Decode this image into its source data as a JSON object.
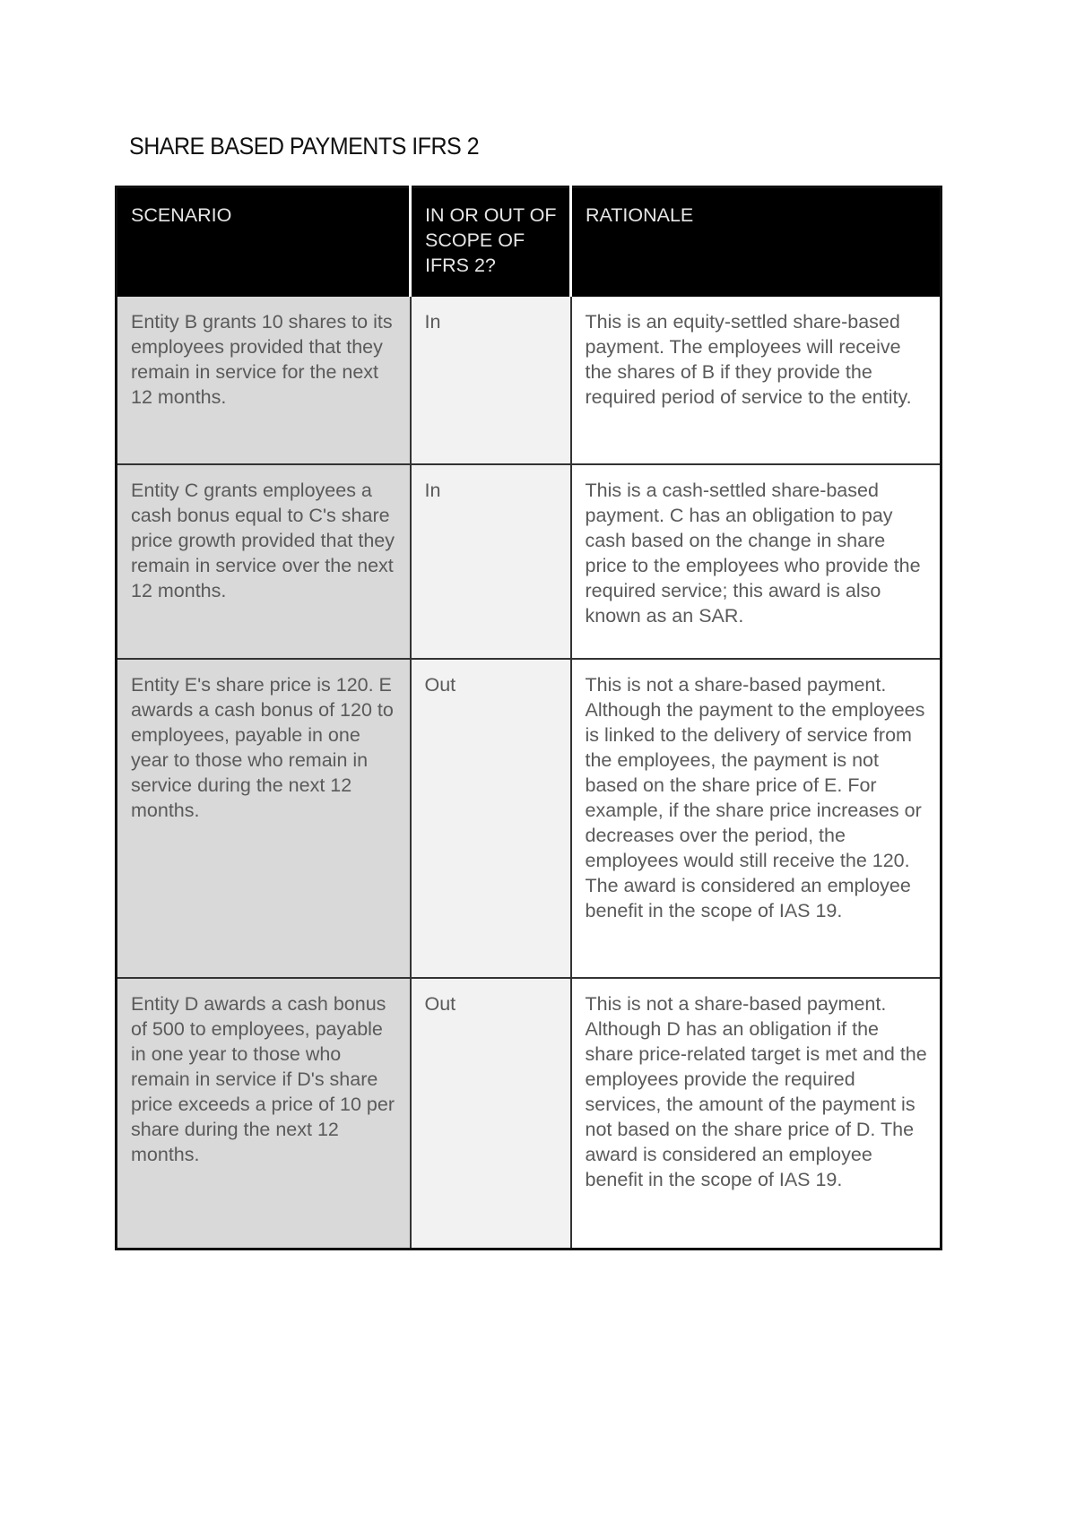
{
  "title": "SHARE BASED PAYMENTS IFRS 2",
  "table": {
    "headers": [
      "SCENARIO",
      "IN OR OUT OF SCOPE OF IFRS 2?",
      "RATIONALE"
    ],
    "rows": [
      {
        "scenario": "Entity B grants 10 shares to its employees provided that they remain in service for the next 12 months.",
        "scope": "In",
        "rationale": "This is an equity-settled share-based payment. The employees will receive the shares of B if they provide the required period of service to the entity."
      },
      {
        "scenario": "Entity C grants employees a cash bonus equal to C's share price growth provided that they remain in service over the next 12 months.",
        "scope": "In",
        "rationale": "This is a cash-settled share-based payment. C has an obligation to pay cash based on the change in share price to the employees who provide the required service; this award is also known as an SAR."
      },
      {
        "scenario": "Entity E's share price is 120. E awards a cash bonus of 120 to employees, payable in one year to those who remain in service during the next 12 months.",
        "scope": "Out",
        "rationale": "This is not a share-based payment. Although the payment to the employees is linked to the delivery of service from the employees, the payment is not based on the share price of E. For example, if the share price increases or decreases over the period, the employees would still receive the 120. The award is considered an employee benefit in the scope of IAS 19."
      },
      {
        "scenario": "Entity D awards a cash bonus of 500 to employees, payable in one year to those who remain in service if D's share price exceeds a price of 10 per share during the next 12 months.",
        "scope": "Out",
        "rationale": "This is not a share-based payment. Although D has an obligation if the share price-related target is met and the employees provide the required services, the amount of the payment is not based on the share price of D. The award is considered an employee benefit in the scope of IAS 19."
      }
    ]
  },
  "colors": {
    "header_bg": "#000000",
    "scenario_bg": "#d9d9d9",
    "scope_bg": "#f2f2f2",
    "rationale_bg": "#ffffff"
  }
}
